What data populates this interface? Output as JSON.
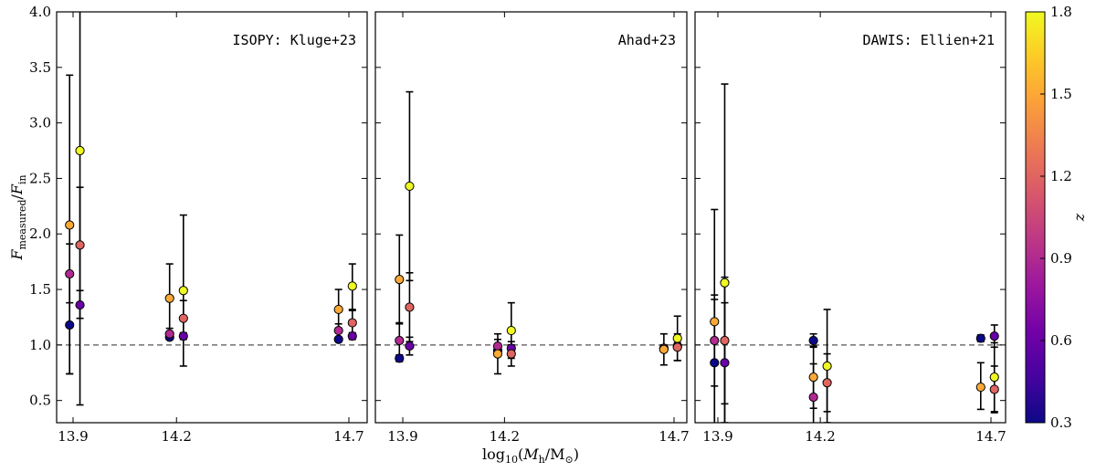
{
  "chart_data": {
    "type": "scatter",
    "x_label_parts": {
      "log": "log",
      "sub10": "10",
      "paren_open": "(",
      "M": "M",
      "sub_h": "h",
      "slash": "/",
      "Msun": "M",
      "sun": "⊙",
      "paren_close": ")"
    },
    "y_label_parts": {
      "F1": "F",
      "sub_measured": "measured",
      "slash": "/",
      "F2": "F",
      "sub_in": "in"
    },
    "ylim": [
      0.3,
      4.0
    ],
    "yticks": [
      "0.5",
      "1.0",
      "1.5",
      "2.0",
      "2.5",
      "3.0",
      "3.5",
      "4.0"
    ],
    "xticks": [
      "13.9",
      "14.2",
      "14.7"
    ],
    "reference_line": 1.0,
    "colorbar": {
      "label": "z",
      "range": [
        0.3,
        1.8
      ],
      "ticks": [
        "0.3",
        "0.6",
        "0.9",
        "1.2",
        "1.5",
        "1.8"
      ],
      "cmap": [
        "#0d0887",
        "#46039f",
        "#7201a8",
        "#9c179e",
        "#bd3786",
        "#d8576b",
        "#ed7953",
        "#fb9f3a",
        "#fdca26",
        "#f0f921"
      ]
    },
    "panels": [
      {
        "label": "ISOPY: Kluge+23",
        "points": [
          {
            "x": 13.89,
            "y": 1.18,
            "lo": 0.74,
            "hi": 1.62,
            "z": 0.3
          },
          {
            "x": 13.89,
            "y": 1.64,
            "lo": 1.38,
            "hi": 1.91,
            "z": 0.9
          },
          {
            "x": 13.89,
            "y": 2.08,
            "lo": 0.74,
            "hi": 3.43,
            "z": 1.5
          },
          {
            "x": 13.92,
            "y": 1.36,
            "lo": 1.24,
            "hi": 1.49,
            "z": 0.6
          },
          {
            "x": 13.92,
            "y": 1.9,
            "lo": 1.37,
            "hi": 2.42,
            "z": 1.2
          },
          {
            "x": 13.92,
            "y": 2.75,
            "lo": 0.46,
            "hi": 4.1,
            "z": 1.8
          },
          {
            "x": 14.18,
            "y": 1.07,
            "lo": 1.05,
            "hi": 1.09,
            "z": 0.3
          },
          {
            "x": 14.18,
            "y": 1.1,
            "lo": 1.06,
            "hi": 1.15,
            "z": 0.9
          },
          {
            "x": 14.18,
            "y": 1.42,
            "lo": 1.12,
            "hi": 1.73,
            "z": 1.5
          },
          {
            "x": 14.22,
            "y": 1.08,
            "lo": 1.05,
            "hi": 1.11,
            "z": 0.6
          },
          {
            "x": 14.22,
            "y": 1.24,
            "lo": 1.08,
            "hi": 1.4,
            "z": 1.2
          },
          {
            "x": 14.22,
            "y": 1.49,
            "lo": 0.81,
            "hi": 2.17,
            "z": 1.8
          },
          {
            "x": 14.67,
            "y": 1.05,
            "lo": 1.03,
            "hi": 1.07,
            "z": 0.3
          },
          {
            "x": 14.67,
            "y": 1.13,
            "lo": 1.07,
            "hi": 1.19,
            "z": 0.9
          },
          {
            "x": 14.67,
            "y": 1.32,
            "lo": 1.15,
            "hi": 1.5,
            "z": 1.5
          },
          {
            "x": 14.71,
            "y": 1.08,
            "lo": 1.05,
            "hi": 1.11,
            "z": 0.6
          },
          {
            "x": 14.71,
            "y": 1.2,
            "lo": 1.09,
            "hi": 1.31,
            "z": 1.2
          },
          {
            "x": 14.71,
            "y": 1.53,
            "lo": 1.32,
            "hi": 1.73,
            "z": 1.8
          }
        ]
      },
      {
        "label": "Ahad+23",
        "points": [
          {
            "x": 13.89,
            "y": 0.88,
            "lo": 0.85,
            "hi": 0.91,
            "z": 0.3
          },
          {
            "x": 13.89,
            "y": 1.04,
            "lo": 0.88,
            "hi": 1.2,
            "z": 0.9
          },
          {
            "x": 13.89,
            "y": 1.59,
            "lo": 1.19,
            "hi": 1.99,
            "z": 1.5
          },
          {
            "x": 13.92,
            "y": 0.99,
            "lo": 0.91,
            "hi": 1.07,
            "z": 0.6
          },
          {
            "x": 13.92,
            "y": 1.34,
            "lo": 1.03,
            "hi": 1.65,
            "z": 1.2
          },
          {
            "x": 13.92,
            "y": 2.43,
            "lo": 1.58,
            "hi": 3.28,
            "z": 1.8
          },
          {
            "x": 14.18,
            "y": 0.95,
            "lo": 0.92,
            "hi": 0.99,
            "z": 0.3
          },
          {
            "x": 14.18,
            "y": 0.99,
            "lo": 0.93,
            "hi": 1.05,
            "z": 0.9
          },
          {
            "x": 14.18,
            "y": 0.92,
            "lo": 0.74,
            "hi": 1.1,
            "z": 1.5
          },
          {
            "x": 14.22,
            "y": 0.97,
            "lo": 0.94,
            "hi": 1.0,
            "z": 0.6
          },
          {
            "x": 14.22,
            "y": 0.92,
            "lo": 0.81,
            "hi": 1.03,
            "z": 1.2
          },
          {
            "x": 14.22,
            "y": 1.13,
            "lo": 0.88,
            "hi": 1.38,
            "z": 1.8
          },
          {
            "x": 14.67,
            "y": 0.97,
            "lo": 0.95,
            "hi": 0.99,
            "z": 0.3
          },
          {
            "x": 14.67,
            "y": 0.97,
            "lo": 0.94,
            "hi": 1.0,
            "z": 0.9
          },
          {
            "x": 14.67,
            "y": 0.96,
            "lo": 0.82,
            "hi": 1.1,
            "z": 1.5
          },
          {
            "x": 14.71,
            "y": 0.99,
            "lo": 0.96,
            "hi": 1.02,
            "z": 0.6
          },
          {
            "x": 14.71,
            "y": 0.98,
            "lo": 0.86,
            "hi": 1.1,
            "z": 1.2
          },
          {
            "x": 14.71,
            "y": 1.06,
            "lo": 0.86,
            "hi": 1.26,
            "z": 1.8
          }
        ]
      },
      {
        "label": "DAWIS: Ellien+21",
        "points": [
          {
            "x": 13.89,
            "y": 0.84,
            "lo": 0.27,
            "hi": 1.41,
            "z": 0.3
          },
          {
            "x": 13.89,
            "y": 1.04,
            "lo": 0.63,
            "hi": 1.45,
            "z": 0.9
          },
          {
            "x": 13.89,
            "y": 1.21,
            "lo": 0.2,
            "hi": 2.22,
            "z": 1.5
          },
          {
            "x": 13.92,
            "y": 0.84,
            "lo": 0.3,
            "hi": 1.38,
            "z": 0.6
          },
          {
            "x": 13.92,
            "y": 1.04,
            "lo": 0.47,
            "hi": 1.61,
            "z": 1.2
          },
          {
            "x": 13.92,
            "y": 1.56,
            "lo": -0.23,
            "hi": 3.35,
            "z": 1.8
          },
          {
            "x": 14.18,
            "y": 1.04,
            "lo": 0.98,
            "hi": 1.1,
            "z": 0.3
          },
          {
            "x": 14.18,
            "y": 0.53,
            "lo": 0.23,
            "hi": 0.83,
            "z": 0.9
          },
          {
            "x": 14.18,
            "y": 0.71,
            "lo": 0.43,
            "hi": 0.99,
            "z": 1.5
          },
          {
            "x": 14.22,
            "y": 0.66,
            "lo": 0.4,
            "hi": 0.92,
            "z": 1.2
          },
          {
            "x": 14.22,
            "y": 0.81,
            "lo": 0.3,
            "hi": 1.32,
            "z": 1.8
          },
          {
            "x": 14.67,
            "y": 1.06,
            "lo": 1.03,
            "hi": 1.09,
            "z": 0.3
          },
          {
            "x": 14.67,
            "y": 0.62,
            "lo": 0.42,
            "hi": 0.84,
            "z": 1.5
          },
          {
            "x": 14.71,
            "y": 1.08,
            "lo": 0.98,
            "hi": 1.18,
            "z": 0.6
          },
          {
            "x": 14.71,
            "y": 0.6,
            "lo": 0.39,
            "hi": 0.81,
            "z": 1.2
          },
          {
            "x": 14.71,
            "y": 0.71,
            "lo": 0.4,
            "hi": 1.02,
            "z": 1.8
          }
        ]
      }
    ]
  }
}
